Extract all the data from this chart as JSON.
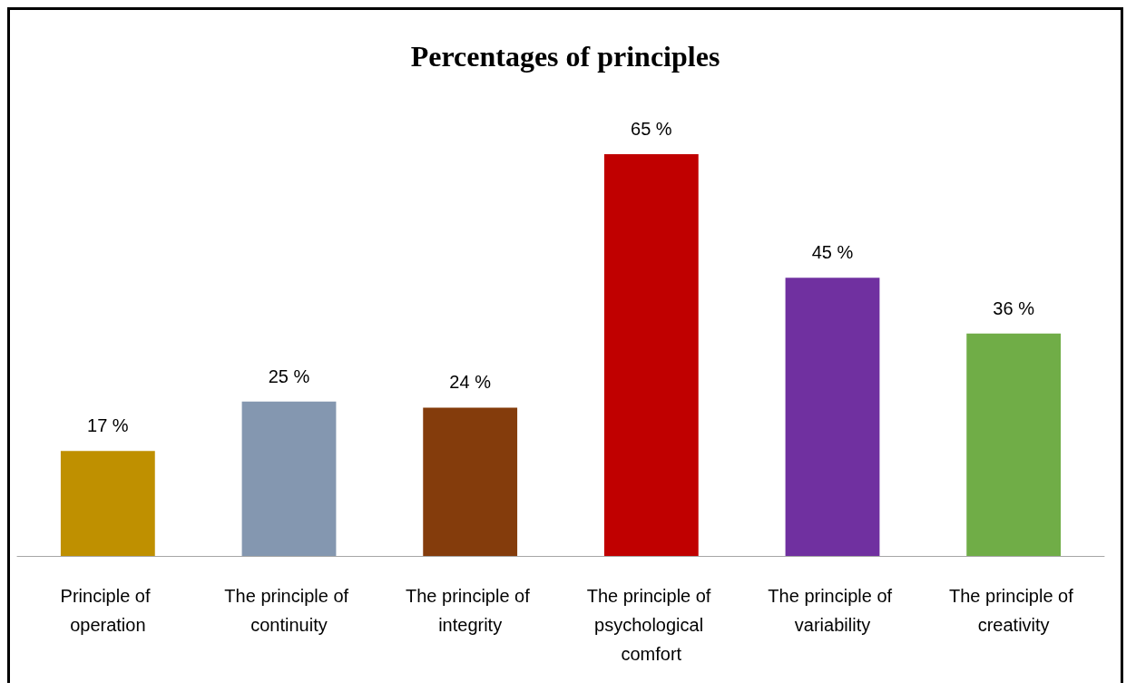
{
  "chart_data": {
    "type": "bar",
    "title": "Percentages of principles",
    "categories": [
      "Principle of operation",
      "The principle of continuity",
      "The principle of integrity",
      "The principle of psychological comfort",
      "The principle of variability",
      "The principle of creativity"
    ],
    "values": [
      17,
      25,
      24,
      65,
      45,
      36
    ],
    "colors": [
      "#bf9000",
      "#8497b0",
      "#843c0c",
      "#c00000",
      "#7030a0",
      "#70ad47"
    ],
    "value_labels": [
      "17 %",
      "25 %",
      "24 %",
      "65 %",
      "45 %",
      "36 %"
    ]
  }
}
